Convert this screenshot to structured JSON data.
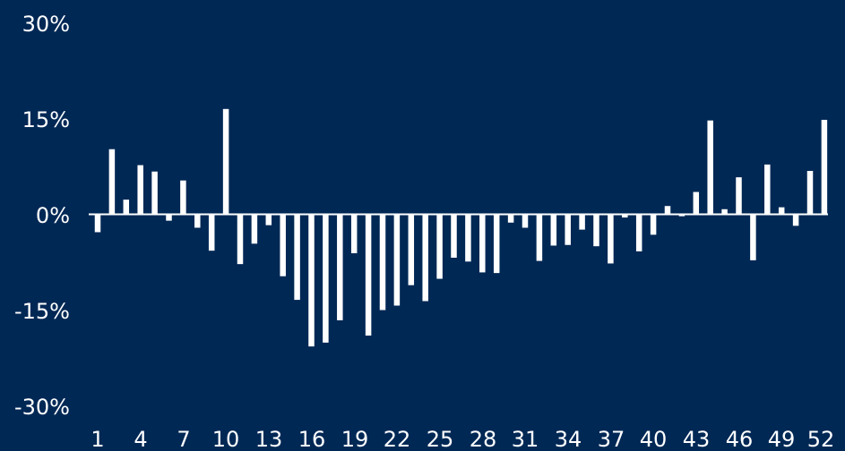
{
  "colors": {
    "background": "#002855",
    "bar": "#ffffff",
    "axis": "#ffffff",
    "text": "#ffffff"
  },
  "chart_data": {
    "type": "bar",
    "title": "",
    "xlabel": "",
    "ylabel": "",
    "ylim": [
      -30,
      30
    ],
    "grid": false,
    "y_ticks": [
      {
        "value": 30,
        "label": "30%"
      },
      {
        "value": 15,
        "label": "15%"
      },
      {
        "value": 0,
        "label": "0%"
      },
      {
        "value": -15,
        "label": "-15%"
      },
      {
        "value": -30,
        "label": "-30%"
      }
    ],
    "x_tick_labels": [
      "1",
      "4",
      "7",
      "10",
      "13",
      "16",
      "19",
      "22",
      "25",
      "28",
      "31",
      "34",
      "37",
      "40",
      "43",
      "46",
      "49",
      "52"
    ],
    "categories": [
      1,
      2,
      3,
      4,
      5,
      6,
      7,
      8,
      9,
      10,
      11,
      12,
      13,
      14,
      15,
      16,
      17,
      18,
      19,
      20,
      21,
      22,
      23,
      24,
      25,
      26,
      27,
      28,
      29,
      30,
      31,
      32,
      33,
      34,
      35,
      36,
      37,
      38,
      39,
      40,
      41,
      42,
      43,
      44,
      45,
      46,
      47,
      48,
      49,
      50,
      51,
      52
    ],
    "values": [
      -2.8,
      10.2,
      2.3,
      7.7,
      6.7,
      -1.0,
      5.3,
      -2.1,
      -5.7,
      16.5,
      -7.8,
      -4.6,
      -1.7,
      -9.7,
      -13.4,
      -20.7,
      -20.1,
      -16.6,
      -6.1,
      -19.0,
      -15.0,
      -14.3,
      -11.1,
      -13.6,
      -10.1,
      -6.8,
      -7.4,
      -9.1,
      -9.2,
      -1.3,
      -2.1,
      -7.3,
      -4.9,
      -4.8,
      -2.4,
      -5.0,
      -7.7,
      -0.5,
      -5.8,
      -3.2,
      1.3,
      -0.3,
      3.5,
      14.7,
      0.8,
      5.8,
      -7.2,
      7.8,
      1.1,
      -1.8,
      6.8,
      14.8
    ]
  }
}
